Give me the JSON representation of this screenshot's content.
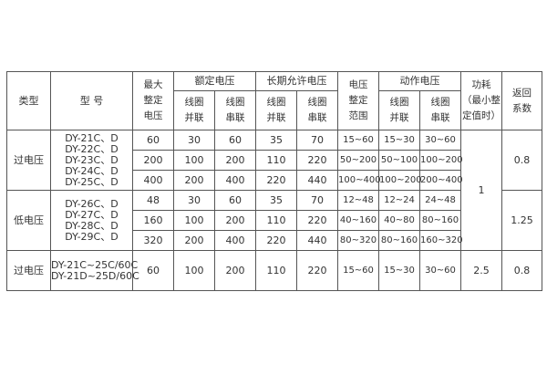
{
  "header": {
    "type": "类型",
    "model": "型 号",
    "max_setting": [
      "最大",
      "整定",
      "电压"
    ],
    "rated_voltage": "额定电压",
    "long_term_voltage": "长期允许电压",
    "setting_range": [
      "电压",
      "整定",
      "范围"
    ],
    "operate_voltage": "动作电压",
    "coil_parallel": [
      "线圈",
      "并联"
    ],
    "coil_series": [
      "线圈",
      "串联"
    ],
    "power": [
      "功耗",
      "（最小整",
      "定值时）"
    ],
    "return_coef": [
      "返回",
      "系数"
    ]
  },
  "groups": [
    {
      "type": "过电压",
      "models": [
        "DY-21C、D",
        "DY-22C、D",
        "DY-23C、D",
        "DY-24C、D",
        "DY-25C、D"
      ],
      "return_coef": "0.8",
      "rows": [
        [
          "60",
          "30",
          "60",
          "35",
          "70",
          "15~60",
          "15~30",
          "30~60"
        ],
        [
          "200",
          "100",
          "200",
          "110",
          "220",
          "50~200",
          "50~100",
          "100~200"
        ],
        [
          "400",
          "200",
          "400",
          "220",
          "440",
          "100~400",
          "100~200",
          "200~400"
        ]
      ]
    },
    {
      "type": "低电压",
      "models": [
        "DY-26C、D",
        "DY-27C、D",
        "DY-28C、D",
        "DY-29C、D"
      ],
      "return_coef": "1.25",
      "rows": [
        [
          "48",
          "30",
          "60",
          "35",
          "70",
          "12~48",
          "12~24",
          "24~48"
        ],
        [
          "160",
          "100",
          "200",
          "110",
          "220",
          "40~160",
          "40~80",
          "80~160"
        ],
        [
          "320",
          "200",
          "400",
          "220",
          "440",
          "80~320",
          "80~160",
          "160~320"
        ]
      ]
    },
    {
      "type": "过电压",
      "models": [
        "DY-21C~25C/60C",
        "DY-21D~25D/60C"
      ],
      "power": "2.5",
      "return_coef": "0.8",
      "rows": [
        [
          "60",
          "100",
          "200",
          "110",
          "220",
          "15~60",
          "15~30",
          "30~60"
        ]
      ]
    }
  ],
  "power_shared": "1"
}
